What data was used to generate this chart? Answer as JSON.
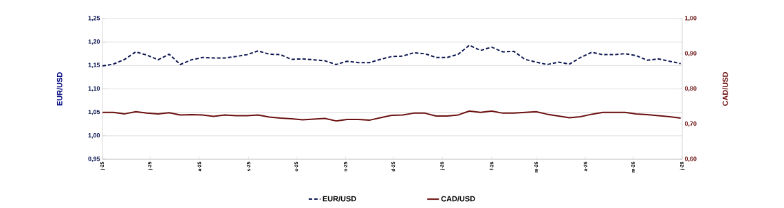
{
  "chart_data": {
    "type": "line",
    "x": [
      "2025-06-01",
      "2025-06-08",
      "2025-06-15",
      "2025-06-22",
      "2025-06-29",
      "2025-07-06",
      "2025-07-13",
      "2025-07-20",
      "2025-07-27",
      "2025-08-03",
      "2025-08-10",
      "2025-08-17",
      "2025-08-24",
      "2025-08-31",
      "2025-09-07",
      "2025-09-14",
      "2025-09-21",
      "2025-09-28",
      "2025-10-05",
      "2025-10-12",
      "2025-10-19",
      "2025-10-26",
      "2025-11-02",
      "2025-11-09",
      "2025-11-16",
      "2025-11-23",
      "2025-11-30",
      "2025-12-07",
      "2025-12-14",
      "2025-12-21",
      "2025-12-28",
      "2026-01-04",
      "2026-01-11",
      "2026-01-18",
      "2026-01-25",
      "2026-02-01",
      "2026-02-08",
      "2026-02-15",
      "2026-02-22",
      "2026-03-01",
      "2026-03-08",
      "2026-03-15",
      "2026-03-22",
      "2026-03-29",
      "2026-04-05",
      "2026-04-12",
      "2026-04-19",
      "2026-04-26",
      "2026-05-03",
      "2026-05-10",
      "2026-05-17",
      "2026-05-24",
      "2026-05-31"
    ],
    "series": [
      {
        "name": "EUR/USD",
        "color": "#0b1650",
        "line_style": "dashed",
        "values": [
          1.149,
          1.153,
          1.163,
          1.179,
          1.172,
          1.162,
          1.174,
          1.152,
          1.162,
          1.167,
          1.166,
          1.166,
          1.169,
          1.173,
          1.181,
          1.174,
          1.173,
          1.163,
          1.164,
          1.162,
          1.16,
          1.152,
          1.159,
          1.156,
          1.156,
          1.163,
          1.169,
          1.17,
          1.177,
          1.175,
          1.167,
          1.167,
          1.174,
          1.193,
          1.182,
          1.189,
          1.179,
          1.18,
          1.163,
          1.157,
          1.152,
          1.157,
          1.153,
          1.167,
          1.178,
          1.173,
          1.173,
          1.175,
          1.171,
          1.161,
          1.164,
          1.159,
          1.154
        ]
      },
      {
        "name": "CAD/USD",
        "color": "#6b0f0f",
        "line_style": "solid",
        "axis": "y2",
        "values": [
          0.733,
          0.733,
          0.729,
          0.735,
          0.731,
          0.729,
          0.732,
          0.726,
          0.727,
          0.726,
          0.722,
          0.726,
          0.724,
          0.724,
          0.726,
          0.72,
          0.717,
          0.715,
          0.712,
          0.714,
          0.716,
          0.709,
          0.713,
          0.713,
          0.711,
          0.718,
          0.725,
          0.726,
          0.731,
          0.731,
          0.723,
          0.723,
          0.726,
          0.737,
          0.733,
          0.737,
          0.731,
          0.731,
          0.733,
          0.735,
          0.728,
          0.723,
          0.718,
          0.721,
          0.728,
          0.733,
          0.733,
          0.733,
          0.729,
          0.727,
          0.724,
          0.721,
          0.717
        ]
      }
    ],
    "ylabel": "EUR/USD",
    "y2label": "CAD/USD",
    "xlim": [
      "2025-06-01",
      "2026-06-01"
    ],
    "xticks": [
      {
        "value": "2025-06-01",
        "label": "j-25"
      },
      {
        "value": "2025-07-01",
        "label": "j-25"
      },
      {
        "value": "2025-08-01",
        "label": "a-25"
      },
      {
        "value": "2025-09-01",
        "label": "s-25"
      },
      {
        "value": "2025-10-01",
        "label": "o-25"
      },
      {
        "value": "2025-11-01",
        "label": "n-25"
      },
      {
        "value": "2025-12-01",
        "label": "d-25"
      },
      {
        "value": "2026-01-01",
        "label": "j-26"
      },
      {
        "value": "2026-02-01",
        "label": "f-26"
      },
      {
        "value": "2026-03-01",
        "label": "m-26"
      },
      {
        "value": "2026-04-01",
        "label": "a-26"
      },
      {
        "value": "2026-05-01",
        "label": "m-26"
      },
      {
        "value": "2026-06-01",
        "label": "j-26"
      }
    ],
    "ylim": [
      0.95,
      1.25
    ],
    "yticks": [
      {
        "value": 0.95,
        "label": "0,95"
      },
      {
        "value": 1.0,
        "label": "1,00"
      },
      {
        "value": 1.05,
        "label": "1,05"
      },
      {
        "value": 1.1,
        "label": "1,10"
      },
      {
        "value": 1.15,
        "label": "1,15"
      },
      {
        "value": 1.2,
        "label": "1,20"
      },
      {
        "value": 1.25,
        "label": "1,25"
      }
    ],
    "y2lim": [
      0.6,
      1.0
    ],
    "y2ticks": [
      {
        "value": 0.6,
        "label": "0,60"
      },
      {
        "value": 0.7,
        "label": "0,70"
      },
      {
        "value": 0.8,
        "label": "0,80"
      },
      {
        "value": 0.9,
        "label": "0,90"
      },
      {
        "value": 1.0,
        "label": "1,00"
      }
    ],
    "grid": "y",
    "legend": "bottom",
    "marker": "none"
  }
}
